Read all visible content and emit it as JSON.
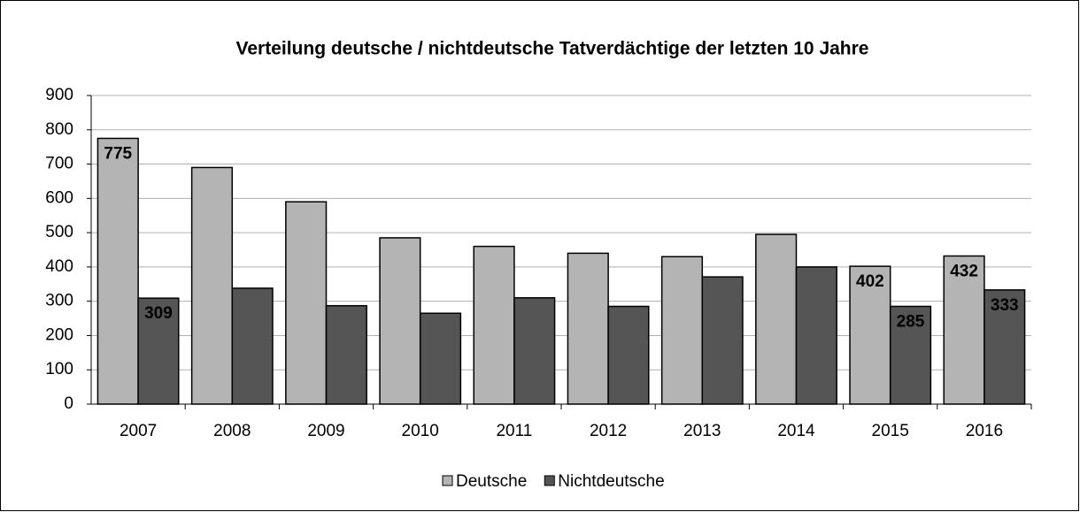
{
  "chart_data": {
    "type": "bar",
    "title": "Verteilung deutsche / nichtdeutsche Tatverdächtige der letzten 10 Jahre",
    "categories": [
      "2007",
      "2008",
      "2009",
      "2010",
      "2011",
      "2012",
      "2013",
      "2014",
      "2015",
      "2016"
    ],
    "series": [
      {
        "name": "Deutsche",
        "color": "#b4b4b4",
        "values": [
          775,
          690,
          590,
          485,
          460,
          440,
          430,
          495,
          402,
          432
        ],
        "value_labels": [
          "775",
          null,
          null,
          null,
          null,
          null,
          null,
          null,
          "402",
          "432"
        ]
      },
      {
        "name": "Nichtdeutsche",
        "color": "#555555",
        "values": [
          309,
          338,
          287,
          265,
          310,
          285,
          371,
          400,
          285,
          333
        ],
        "value_labels": [
          "309",
          null,
          null,
          null,
          null,
          null,
          null,
          null,
          "285",
          "333"
        ]
      }
    ],
    "ylim": [
      0,
      900
    ],
    "yticks": [
      0,
      100,
      200,
      300,
      400,
      500,
      600,
      700,
      800,
      900
    ],
    "grid": true,
    "legend": "bottom"
  }
}
